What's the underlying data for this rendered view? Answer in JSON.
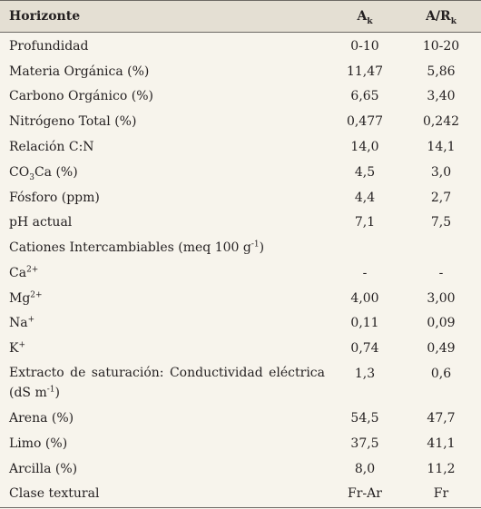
{
  "header": {
    "label": "Horizonte",
    "col1": "A",
    "col1_sub": "k",
    "col2": "A/R",
    "col2_sub": "k"
  },
  "rows": [
    {
      "label": "Profundidad",
      "v1": "0-10",
      "v2": "10-20"
    },
    {
      "label": "Materia Orgánica (%)",
      "v1": "11,47",
      "v2": "5,86"
    },
    {
      "label": "Carbono Orgánico (%)",
      "v1": "6,65",
      "v2": "3,40"
    },
    {
      "label": "Nitrógeno Total (%)",
      "v1": "0,477",
      "v2": "0,242"
    },
    {
      "label": "Relación C:N",
      "v1": "14,0",
      "v2": "14,1"
    },
    {
      "label_a": "CO",
      "label_sub": "3",
      "label_b": "Ca (%)",
      "v1": "4,5",
      "v2": "3,0"
    },
    {
      "label": "Fósforo (ppm)",
      "v1": "4,4",
      "v2": "2,7"
    },
    {
      "label": "pH actual",
      "v1": "7,1",
      "v2": "7,5"
    },
    {
      "label_a": "Cationes Intercambiables (meq 100 g",
      "label_sup": "-1",
      "label_b": ")",
      "v1": "",
      "v2": ""
    },
    {
      "label_a": "Ca",
      "label_sup": "2+",
      "v1": "-",
      "v2": "-"
    },
    {
      "label_a": "Mg",
      "label_sup": "2+",
      "v1": "4,00",
      "v2": "3,00"
    },
    {
      "label_a": "Na",
      "label_sup": "+",
      "v1": "0,11",
      "v2": "0,09"
    },
    {
      "label_a": "K",
      "label_sup": "+",
      "v1": "0,74",
      "v2": "0,49"
    },
    {
      "label_line1": "Extracto de saturación: Conductividad eléctrica",
      "label_line2_a": "(dS m",
      "label_line2_sup": "-1",
      "label_line2_b": ")",
      "v1": "1,3",
      "v2": "0,6"
    },
    {
      "label": "Arena (%)",
      "v1": "54,5",
      "v2": "47,7"
    },
    {
      "label": "Limo (%)",
      "v1": "37,5",
      "v2": "41,1"
    },
    {
      "label": "Arcilla (%)",
      "v1": "8,0",
      "v2": "11,2"
    },
    {
      "label": "Clase textural",
      "v1": "Fr-Ar",
      "v2": "Fr"
    }
  ]
}
